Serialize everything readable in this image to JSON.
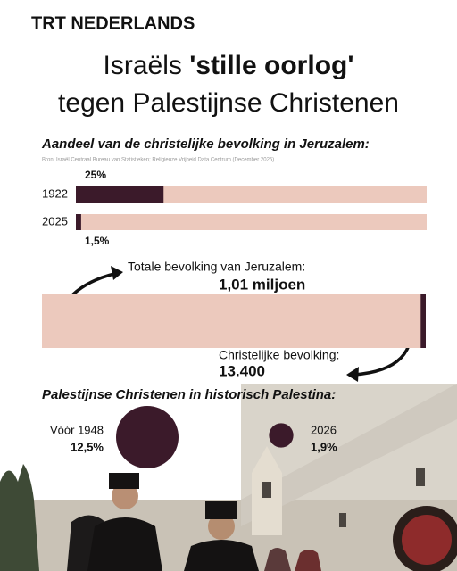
{
  "header": {
    "brand": "TRT NEDERLANDS",
    "title_plain": "Israëls",
    "title_bold": "'stille oorlog'",
    "title_line2": "tegen Palestijnse Christenen"
  },
  "chart_data": [
    {
      "type": "share-bar",
      "title": "Aandeel van de christelijke bevolking in Jeruzalem:",
      "source": "Bron: Israël Centraal Bureau van Statistieken; Religieuze Vrijheid Data Centrum (December 2025)",
      "categories": [
        "1922",
        "2025"
      ],
      "values": [
        25,
        1.5
      ],
      "value_labels": [
        "25%",
        "1,5%"
      ],
      "xlim": [
        0,
        100
      ],
      "color": "#3b1a2a",
      "track_color": "#ecc9bd"
    },
    {
      "type": "part-of-whole",
      "categories": [
        "Totale bevolking van Jeruzalem:",
        "Christelijke bevolking:"
      ],
      "values": [
        1010000,
        13400
      ],
      "value_labels": [
        "1,01 miljoen",
        "13.400"
      ],
      "colors": [
        "#ecc9bd",
        "#3b1a2a"
      ]
    },
    {
      "type": "bubble",
      "title": "Palestijnse Christenen in historisch Palestina:",
      "categories": [
        "Vóór 1948",
        "2026"
      ],
      "values": [
        12.5,
        1.9
      ],
      "value_labels": [
        "12,5%",
        "1,9%"
      ],
      "color": "#3b1a2a"
    }
  ]
}
